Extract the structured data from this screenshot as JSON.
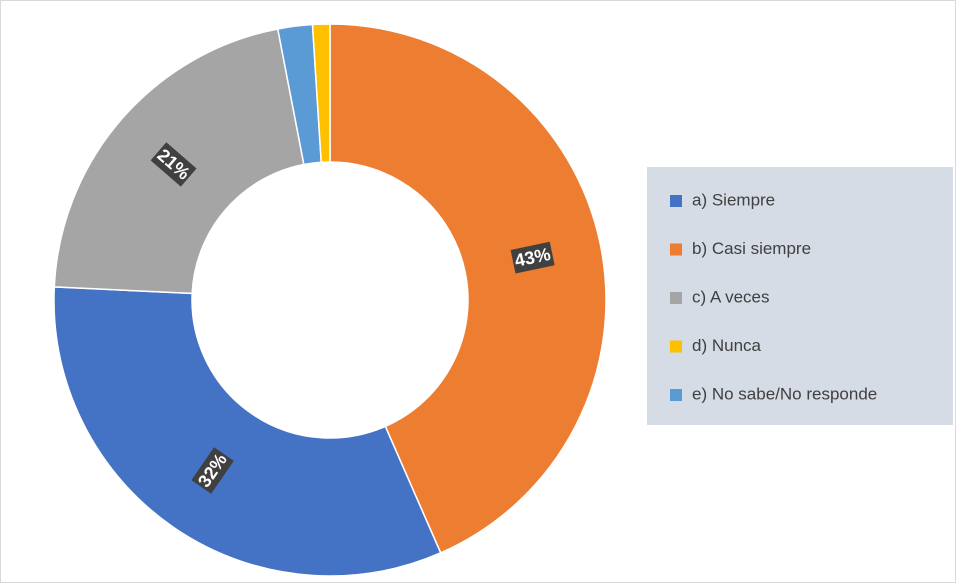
{
  "chart_data": {
    "type": "donut",
    "categories": [
      "b) Casi siempre",
      "a) Siempre",
      "c) A veces",
      "e) No sabe/No responde",
      "d) Nunca"
    ],
    "values": [
      43,
      32,
      21,
      2,
      1
    ],
    "value_labels": [
      "43%",
      "32%",
      "21%",
      null,
      null
    ],
    "colors": [
      "#ed7d31",
      "#4472c4",
      "#a5a5a5",
      "#5b9bd5",
      "#ffc000"
    ],
    "legend": "right"
  }
}
